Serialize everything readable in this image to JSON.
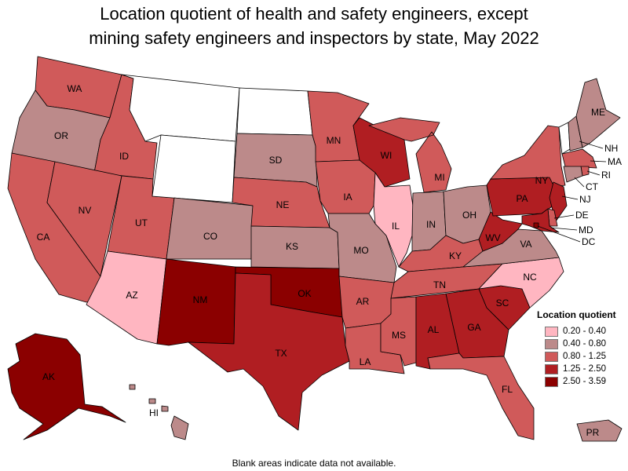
{
  "title_line1": "Location quotient of health and safety engineers, except",
  "title_line2": "mining safety engineers and inspectors by state, May 2022",
  "footnote": "Blank areas indicate data not available.",
  "legend": {
    "title": "Location quotient",
    "bins": [
      {
        "label": "0.20 - 0.40",
        "color": "#ffb6c1"
      },
      {
        "label": "0.40 - 0.80",
        "color": "#bc8a8a"
      },
      {
        "label": "0.80 - 1.25",
        "color": "#d05a5a"
      },
      {
        "label": "1.25 - 2.50",
        "color": "#b01e22"
      },
      {
        "label": "2.50 - 3.59",
        "color": "#8b0000"
      }
    ]
  },
  "states": {
    "WA": {
      "label": "WA",
      "bin": 2
    },
    "OR": {
      "label": "OR",
      "bin": 1
    },
    "CA": {
      "label": "CA",
      "bin": 2
    },
    "ID": {
      "label": "ID",
      "bin": 2
    },
    "NV": {
      "label": "NV",
      "bin": 2
    },
    "UT": {
      "label": "UT",
      "bin": 2
    },
    "AZ": {
      "label": "AZ",
      "bin": 0
    },
    "MT": {
      "label": "",
      "bin": null
    },
    "WY": {
      "label": "",
      "bin": null
    },
    "ND": {
      "label": "",
      "bin": null
    },
    "CO": {
      "label": "CO",
      "bin": 1
    },
    "NM": {
      "label": "NM",
      "bin": 4
    },
    "SD": {
      "label": "SD",
      "bin": 1
    },
    "NE": {
      "label": "NE",
      "bin": 2
    },
    "KS": {
      "label": "KS",
      "bin": 1
    },
    "OK": {
      "label": "OK",
      "bin": 4
    },
    "TX": {
      "label": "TX",
      "bin": 3
    },
    "MN": {
      "label": "MN",
      "bin": 2
    },
    "IA": {
      "label": "IA",
      "bin": 2
    },
    "MO": {
      "label": "MO",
      "bin": 1
    },
    "AR": {
      "label": "AR",
      "bin": 2
    },
    "LA": {
      "label": "LA",
      "bin": 2
    },
    "WI": {
      "label": "WI",
      "bin": 3
    },
    "IL": {
      "label": "IL",
      "bin": 0
    },
    "MI": {
      "label": "MI",
      "bin": 2
    },
    "IN": {
      "label": "IN",
      "bin": 1
    },
    "OH": {
      "label": "OH",
      "bin": 1
    },
    "KY": {
      "label": "KY",
      "bin": 2
    },
    "TN": {
      "label": "TN",
      "bin": 2
    },
    "MS": {
      "label": "MS",
      "bin": 2
    },
    "AL": {
      "label": "AL",
      "bin": 3
    },
    "GA": {
      "label": "GA",
      "bin": 3
    },
    "FL": {
      "label": "FL",
      "bin": 2
    },
    "SC": {
      "label": "SC",
      "bin": 3
    },
    "NC": {
      "label": "NC",
      "bin": 0
    },
    "VA": {
      "label": "VA",
      "bin": 1
    },
    "WV": {
      "label": "WV",
      "bin": 3
    },
    "PA": {
      "label": "PA",
      "bin": 3
    },
    "NY": {
      "label": "NY",
      "bin": 2
    },
    "VT": {
      "label": "",
      "bin": null
    },
    "ME": {
      "label": "ME",
      "bin": 1
    },
    "NH": {
      "label": "NH",
      "bin": 1
    },
    "MA": {
      "label": "MA",
      "bin": 2
    },
    "CT": {
      "label": "CT",
      "bin": 1
    },
    "RI": {
      "label": "RI",
      "bin": 2
    },
    "NJ": {
      "label": "NJ",
      "bin": 3
    },
    "DE": {
      "label": "DE",
      "bin": 2
    },
    "MD": {
      "label": "MD",
      "bin": 3
    },
    "DC": {
      "label": "DC",
      "bin": 4
    },
    "AK": {
      "label": "AK",
      "bin": 4
    },
    "HI": {
      "label": "HI",
      "bin": 1
    },
    "PR": {
      "label": "PR",
      "bin": 1
    }
  }
}
